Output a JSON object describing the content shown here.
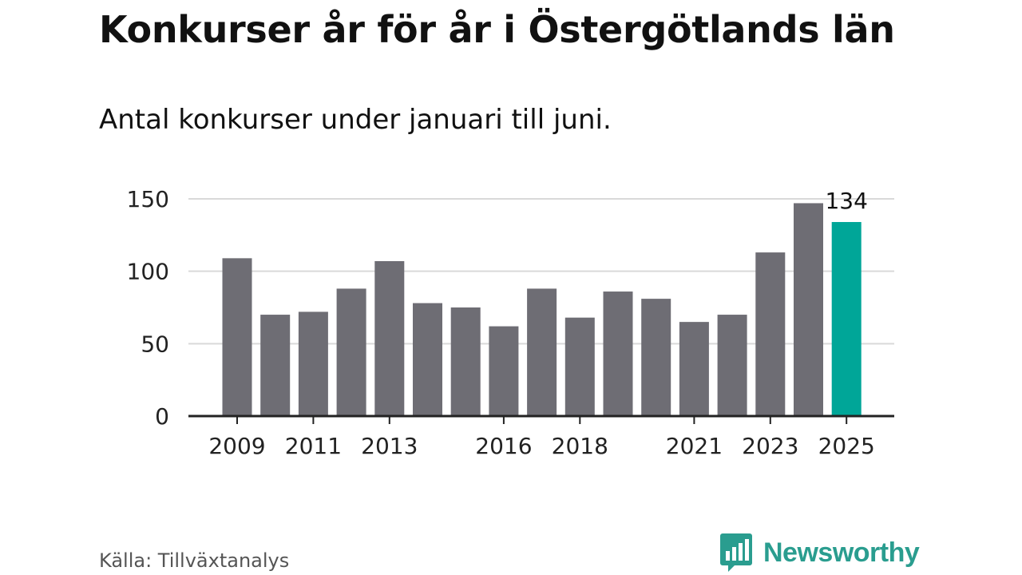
{
  "header": {
    "title": "Konkurser år för år i Östergötlands län",
    "subtitle": "Antal konkurser under januari till juni."
  },
  "footer": {
    "source": "Källa: Tillväxtanalys",
    "brand_name": "Newsworthy",
    "brand_icon": "newsworthy-logo-icon"
  },
  "colors": {
    "bar": "#6e6d74",
    "highlight": "#00a698",
    "grid": "#d9d9d9",
    "axis": "#222222",
    "brand": "#2a9d8f"
  },
  "chart_data": {
    "type": "bar",
    "categories": [
      "2009",
      "2010",
      "2011",
      "2012",
      "2013",
      "2014",
      "2015",
      "2016",
      "2017",
      "2018",
      "2019",
      "2020",
      "2021",
      "2022",
      "2023",
      "2024",
      "2025"
    ],
    "values": [
      109,
      70,
      72,
      88,
      107,
      78,
      75,
      62,
      88,
      68,
      86,
      81,
      65,
      70,
      113,
      147,
      134
    ],
    "x_tick_labels": [
      "2009",
      "2011",
      "2013",
      "2016",
      "2018",
      "2021",
      "2023",
      "2025"
    ],
    "y_ticks": [
      0,
      50,
      100,
      150
    ],
    "ylim": [
      0,
      150
    ],
    "grid": true,
    "highlight_category": "2025",
    "data_label": "134",
    "xlabel": "",
    "ylabel": ""
  }
}
